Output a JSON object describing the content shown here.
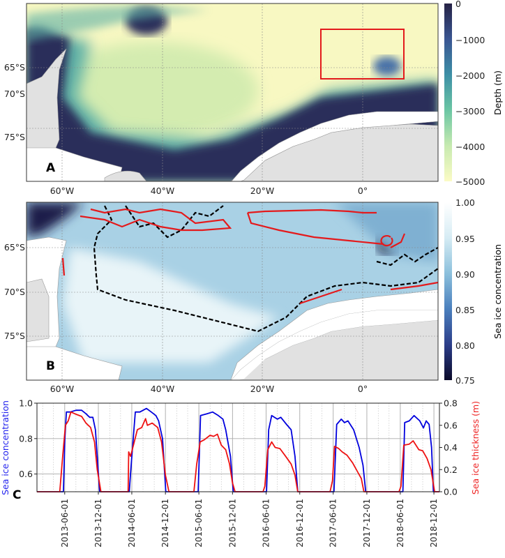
{
  "panels": {
    "a": {
      "label": "A",
      "lat_ticks": [
        "65°S",
        "70°S",
        "75°S"
      ],
      "lon_ticks": [
        "60°W",
        "40°W",
        "20°W",
        "0°"
      ],
      "colorbar": {
        "label": "Depth (m)",
        "ticks": [
          "0",
          "−1000",
          "−2000",
          "−3000",
          "−4000",
          "−5000"
        ],
        "range": [
          0,
          -5000
        ],
        "colors": [
          "#262245",
          "#3a5592",
          "#3d8fa6",
          "#6bc6a4",
          "#c7eab0",
          "#fbfbc5"
        ]
      },
      "highlight_box_color": "#e31a1c"
    },
    "b": {
      "label": "B",
      "lat_ticks": [
        "65°S",
        "70°S",
        "75°S"
      ],
      "lon_ticks": [
        "60°W",
        "40°W",
        "20°W",
        "0°"
      ],
      "colorbar": {
        "label": "Sea ice concentration",
        "ticks": [
          "1.00",
          "0.95",
          "0.90",
          "0.85",
          "0.80",
          "0.75"
        ],
        "range": [
          0.75,
          1.0
        ],
        "colors": [
          "#ffffff",
          "#d6ecf4",
          "#8cc0dc",
          "#4a7fbd",
          "#2c3e8a",
          "#0b0b2a"
        ]
      },
      "contour_colors": {
        "red": "#e41a1c",
        "black_dashed": "#000000"
      }
    }
  },
  "chart_data": {
    "type": "line",
    "label": "C",
    "x_type": "date",
    "xlim": [
      "2013-01-01",
      "2018-12-31"
    ],
    "x_ticks": [
      "2013-06-01",
      "2013-12-01",
      "2014-06-01",
      "2014-12-01",
      "2015-06-01",
      "2015-12-01",
      "2016-06-01",
      "2016-12-01",
      "2017-06-01",
      "2017-12-01",
      "2018-06-01",
      "2018-12-01"
    ],
    "ylabel_left": "Sea ice concentration",
    "ylabel_right": "Sea ice thickness (m)",
    "ylim_left": [
      0.5,
      1.0
    ],
    "ylim_right": [
      0.0,
      0.8
    ],
    "y_ticks_left": [
      "0.6",
      "0.8",
      "1.0"
    ],
    "y_ticks_right": [
      "0.0",
      "0.2",
      "0.4",
      "0.6",
      "0.8"
    ],
    "grid": true,
    "series": [
      {
        "name": "Sea ice concentration",
        "axis": "left",
        "color": "#0000dd",
        "points": [
          [
            "2013-01-01",
            0.5
          ],
          [
            "2013-05-25",
            0.5
          ],
          [
            "2013-06-02",
            0.8
          ],
          [
            "2013-06-10",
            0.95
          ],
          [
            "2013-07-01",
            0.95
          ],
          [
            "2013-08-01",
            0.96
          ],
          [
            "2013-09-01",
            0.96
          ],
          [
            "2013-09-25",
            0.94
          ],
          [
            "2013-10-15",
            0.92
          ],
          [
            "2013-11-01",
            0.92
          ],
          [
            "2013-11-15",
            0.85
          ],
          [
            "2013-11-25",
            0.7
          ],
          [
            "2013-12-08",
            0.5
          ],
          [
            "2014-05-18",
            0.5
          ],
          [
            "2014-05-25",
            0.6
          ],
          [
            "2014-06-05",
            0.75
          ],
          [
            "2014-06-20",
            0.95
          ],
          [
            "2014-07-15",
            0.95
          ],
          [
            "2014-08-20",
            0.97
          ],
          [
            "2014-09-15",
            0.95
          ],
          [
            "2014-10-10",
            0.93
          ],
          [
            "2014-10-25",
            0.9
          ],
          [
            "2014-11-15",
            0.8
          ],
          [
            "2014-12-03",
            0.5
          ],
          [
            "2015-05-28",
            0.5
          ],
          [
            "2015-06-10",
            0.93
          ],
          [
            "2015-07-15",
            0.94
          ],
          [
            "2015-08-15",
            0.95
          ],
          [
            "2015-09-15",
            0.93
          ],
          [
            "2015-10-10",
            0.91
          ],
          [
            "2015-10-25",
            0.85
          ],
          [
            "2015-11-20",
            0.7
          ],
          [
            "2015-12-05",
            0.5
          ],
          [
            "2016-06-03",
            0.5
          ],
          [
            "2016-06-15",
            0.85
          ],
          [
            "2016-07-01",
            0.93
          ],
          [
            "2016-08-01",
            0.91
          ],
          [
            "2016-08-20",
            0.92
          ],
          [
            "2016-09-20",
            0.88
          ],
          [
            "2016-10-15",
            0.85
          ],
          [
            "2016-11-05",
            0.7
          ],
          [
            "2016-11-20",
            0.5
          ],
          [
            "2017-06-05",
            0.5
          ],
          [
            "2017-06-20",
            0.88
          ],
          [
            "2017-07-15",
            0.91
          ],
          [
            "2017-08-01",
            0.89
          ],
          [
            "2017-08-20",
            0.9
          ],
          [
            "2017-09-20",
            0.85
          ],
          [
            "2017-10-20",
            0.75
          ],
          [
            "2017-11-10",
            0.65
          ],
          [
            "2017-11-25",
            0.5
          ],
          [
            "2018-06-15",
            0.5
          ],
          [
            "2018-06-25",
            0.89
          ],
          [
            "2018-07-20",
            0.9
          ],
          [
            "2018-08-15",
            0.93
          ],
          [
            "2018-09-15",
            0.9
          ],
          [
            "2018-10-05",
            0.86
          ],
          [
            "2018-10-20",
            0.9
          ],
          [
            "2018-11-05",
            0.88
          ],
          [
            "2018-11-18",
            0.75
          ],
          [
            "2018-11-28",
            0.5
          ],
          [
            "2018-12-31",
            0.5
          ]
        ]
      },
      {
        "name": "Sea ice thickness (m)",
        "axis": "right",
        "color": "#ee1111",
        "points": [
          [
            "2013-01-01",
            0.0
          ],
          [
            "2013-05-05",
            0.0
          ],
          [
            "2013-05-20",
            0.3
          ],
          [
            "2013-06-05",
            0.6
          ],
          [
            "2013-06-20",
            0.64
          ],
          [
            "2013-07-05",
            0.72
          ],
          [
            "2013-08-01",
            0.7
          ],
          [
            "2013-09-01",
            0.68
          ],
          [
            "2013-09-25",
            0.62
          ],
          [
            "2013-10-20",
            0.58
          ],
          [
            "2013-11-10",
            0.45
          ],
          [
            "2013-11-25",
            0.2
          ],
          [
            "2013-12-15",
            0.0
          ],
          [
            "2014-05-12",
            0.0
          ],
          [
            "2014-05-15",
            0.36
          ],
          [
            "2014-05-25",
            0.32
          ],
          [
            "2014-06-10",
            0.42
          ],
          [
            "2014-07-01",
            0.56
          ],
          [
            "2014-07-25",
            0.58
          ],
          [
            "2014-08-15",
            0.66
          ],
          [
            "2014-08-25",
            0.6
          ],
          [
            "2014-09-20",
            0.62
          ],
          [
            "2014-10-20",
            0.58
          ],
          [
            "2014-11-10",
            0.45
          ],
          [
            "2014-12-01",
            0.15
          ],
          [
            "2014-12-20",
            0.0
          ],
          [
            "2015-05-05",
            0.0
          ],
          [
            "2015-05-20",
            0.25
          ],
          [
            "2015-06-08",
            0.45
          ],
          [
            "2015-07-01",
            0.47
          ],
          [
            "2015-08-01",
            0.51
          ],
          [
            "2015-08-20",
            0.5
          ],
          [
            "2015-09-10",
            0.52
          ],
          [
            "2015-10-01",
            0.42
          ],
          [
            "2015-10-25",
            0.38
          ],
          [
            "2015-11-15",
            0.25
          ],
          [
            "2015-12-01",
            0.08
          ],
          [
            "2015-12-15",
            0.0
          ],
          [
            "2016-05-15",
            0.0
          ],
          [
            "2016-05-25",
            0.05
          ],
          [
            "2016-06-10",
            0.38
          ],
          [
            "2016-07-01",
            0.45
          ],
          [
            "2016-07-20",
            0.4
          ],
          [
            "2016-08-15",
            0.39
          ],
          [
            "2016-09-15",
            0.32
          ],
          [
            "2016-10-15",
            0.25
          ],
          [
            "2016-11-05",
            0.15
          ],
          [
            "2016-11-20",
            0.0
          ],
          [
            "2017-05-15",
            0.0
          ],
          [
            "2017-05-28",
            0.1
          ],
          [
            "2017-06-08",
            0.41
          ],
          [
            "2017-07-01",
            0.39
          ],
          [
            "2017-07-20",
            0.36
          ],
          [
            "2017-08-15",
            0.33
          ],
          [
            "2017-09-15",
            0.26
          ],
          [
            "2017-10-15",
            0.17
          ],
          [
            "2017-11-01",
            0.12
          ],
          [
            "2017-11-15",
            0.0
          ],
          [
            "2018-05-25",
            0.0
          ],
          [
            "2018-06-05",
            0.05
          ],
          [
            "2018-06-20",
            0.42
          ],
          [
            "2018-07-20",
            0.43
          ],
          [
            "2018-08-10",
            0.46
          ],
          [
            "2018-09-10",
            0.38
          ],
          [
            "2018-10-01",
            0.37
          ],
          [
            "2018-10-25",
            0.3
          ],
          [
            "2018-11-15",
            0.2
          ],
          [
            "2018-12-05",
            0.0
          ],
          [
            "2018-12-31",
            0.0
          ]
        ]
      }
    ]
  }
}
